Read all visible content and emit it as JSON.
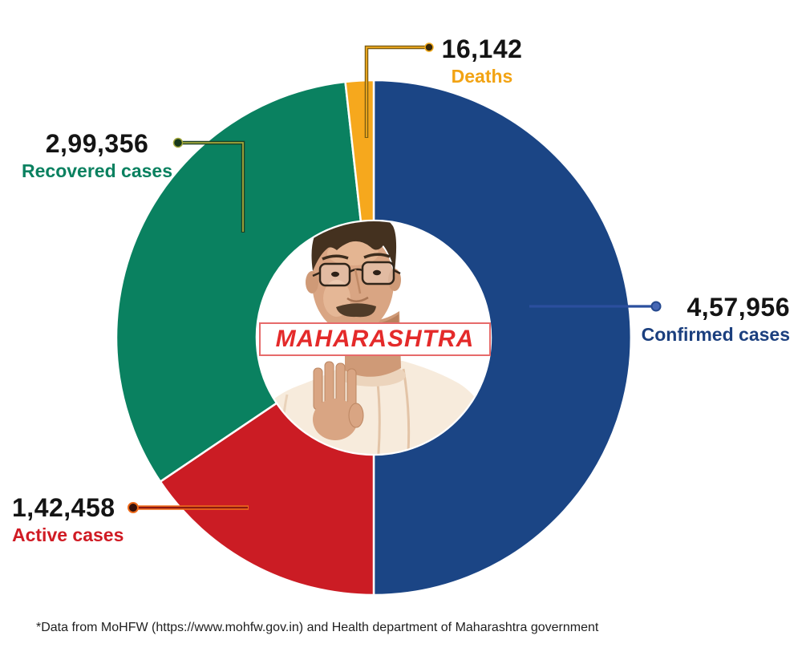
{
  "chart_data": {
    "type": "pie",
    "subtype": "donut",
    "title": "MAHARASHTRA",
    "direction": "clockwise",
    "start_angle_deg": 0,
    "legend_position": "external-callouts",
    "series": [
      {
        "name": "Confirmed cases",
        "value": 457956,
        "display": "4,57,956",
        "color": "#1b4585",
        "label_color": "#1b3f7e"
      },
      {
        "name": "Active cases",
        "value": 142458,
        "display": "1,42,458",
        "color": "#cb1c24",
        "label_color": "#d01b24"
      },
      {
        "name": "Recovered cases",
        "value": 299356,
        "display": "2,99,356",
        "color": "#0a8160",
        "label_color": "#0a8160"
      },
      {
        "name": "Deaths",
        "value": 16142,
        "display": "16,142",
        "color": "#f6a81d",
        "label_color": "#f2a313"
      }
    ]
  },
  "center": {
    "title": "MAHARASHTRA"
  },
  "footer": {
    "text": "*Data from MoHFW (https://www.mohfw.gov.in) and Health department of Maharashtra government"
  }
}
